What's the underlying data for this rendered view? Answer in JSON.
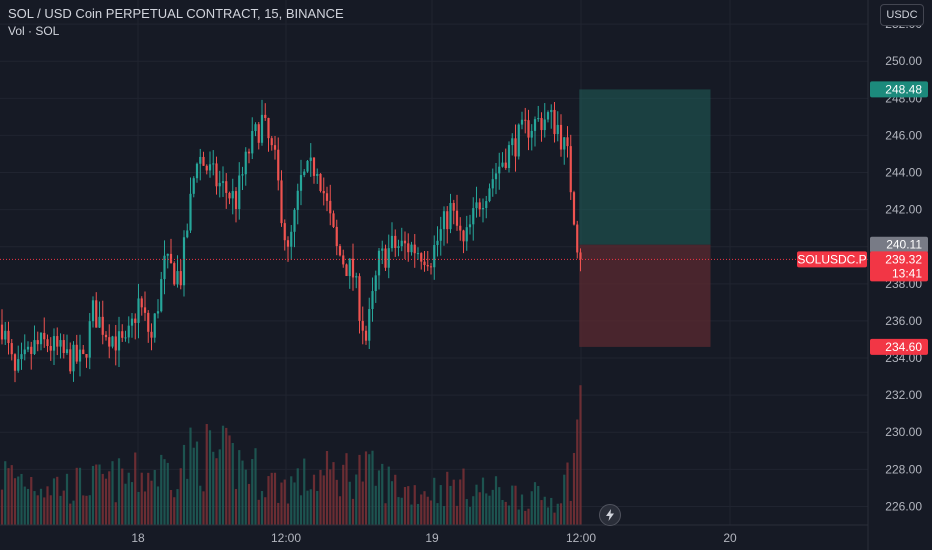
{
  "header": {
    "title": "SOL / USD Coin PERPETUAL CONTRACT, 15, BINANCE",
    "volume_label": "Vol · SOL"
  },
  "toolbar": {
    "currency_button": "USDC"
  },
  "icons": {
    "bolt": "lightning-bolt-icon"
  },
  "colors": {
    "background": "#161a25",
    "up": "#26a69a",
    "down": "#ef5350",
    "profit_zone": "#1f5a55",
    "loss_zone": "#5b2a30",
    "last_price": "#f23645",
    "entry_tag": "#787b86"
  },
  "chart_data": {
    "type": "candlestick",
    "symbol_tag": "SOLUSDC.P",
    "x_ticks": [
      "18",
      "12:00",
      "19",
      "12:00",
      "20"
    ],
    "y_ticks": [
      226,
      228,
      230,
      232,
      234,
      236,
      238,
      240,
      242,
      244,
      246,
      248,
      250,
      252
    ],
    "ylim": [
      225,
      253.3
    ],
    "tags": {
      "target": "248.48",
      "entry": "240.11",
      "last": "239.32",
      "countdown": "13:41",
      "stop": "234.60"
    },
    "levels": {
      "target": 248.48,
      "entry": 240.11,
      "last": 239.32,
      "stop": 234.6
    },
    "position_window": {
      "start_index": 177,
      "end_index": 218
    },
    "waypoints": [
      [
        0,
        235.8
      ],
      [
        4,
        233.0
      ],
      [
        10,
        234.6
      ],
      [
        14,
        234.8
      ],
      [
        20,
        234.0
      ],
      [
        25,
        233.8
      ],
      [
        28,
        236.5
      ],
      [
        32,
        235.5
      ],
      [
        38,
        234.5
      ],
      [
        42,
        237.0
      ],
      [
        46,
        235.0
      ],
      [
        50,
        239.0
      ],
      [
        55,
        238.4
      ],
      [
        60,
        245.0
      ],
      [
        66,
        243.5
      ],
      [
        72,
        242.5
      ],
      [
        76,
        245.2
      ],
      [
        80,
        246.8
      ],
      [
        84,
        244.5
      ],
      [
        88,
        239.5
      ],
      [
        92,
        243.5
      ],
      [
        97,
        244.5
      ],
      [
        103,
        239.8
      ],
      [
        108,
        238.5
      ],
      [
        112,
        235.0
      ],
      [
        116,
        239.2
      ],
      [
        120,
        240.0
      ],
      [
        126,
        240.0
      ],
      [
        132,
        239.5
      ],
      [
        138,
        242.0
      ],
      [
        142,
        240.0
      ],
      [
        147,
        242.5
      ],
      [
        155,
        245.0
      ],
      [
        162,
        246.5
      ],
      [
        168,
        247.0
      ],
      [
        171,
        246.5
      ],
      [
        174,
        244.8
      ],
      [
        177,
        240.3
      ],
      [
        178,
        239.32
      ]
    ],
    "volume_profile": [
      [
        0,
        60
      ],
      [
        20,
        45
      ],
      [
        40,
        55
      ],
      [
        55,
        70
      ],
      [
        60,
        85
      ],
      [
        75,
        70
      ],
      [
        85,
        45
      ],
      [
        95,
        55
      ],
      [
        110,
        65
      ],
      [
        125,
        40
      ],
      [
        140,
        45
      ],
      [
        150,
        40
      ],
      [
        160,
        35
      ],
      [
        170,
        30
      ],
      [
        175,
        60
      ],
      [
        178,
        130
      ]
    ]
  }
}
